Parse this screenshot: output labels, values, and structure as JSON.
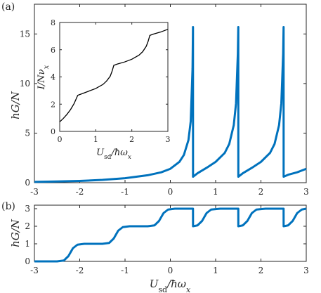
{
  "chart_data": [
    {
      "type": "line",
      "panel_label": "(a)",
      "ylabel": "hG/N",
      "xlim": [
        -3,
        3
      ],
      "ylim": [
        0,
        18
      ],
      "xticks": [
        "-3",
        "-2",
        "-1",
        "0",
        "1",
        "2",
        "3"
      ],
      "yticks": [
        "0",
        "5",
        "10",
        "15"
      ],
      "color": "#0072bd",
      "series": [
        {
          "x": [
            -3,
            -2.5,
            -2,
            -1.5,
            -1,
            -0.5,
            -0.2,
            0,
            0.2,
            0.3,
            0.4,
            0.45,
            0.49,
            0.5,
            0.501,
            0.6,
            0.8,
            1.0,
            1.2,
            1.3,
            1.4,
            1.45,
            1.49,
            1.5,
            1.501,
            1.6,
            1.8,
            2.0,
            2.2,
            2.3,
            2.4,
            2.45,
            2.49,
            2.5,
            2.501,
            2.6,
            2.8,
            3.0
          ],
          "y": [
            0.08,
            0.12,
            0.18,
            0.28,
            0.45,
            0.75,
            1.05,
            1.4,
            2.1,
            2.8,
            4.3,
            6.2,
            11.5,
            15.7,
            0.6,
            0.95,
            1.5,
            2.1,
            3.0,
            3.9,
            5.8,
            8.0,
            13.0,
            15.7,
            0.6,
            0.95,
            1.5,
            2.1,
            3.0,
            3.9,
            5.8,
            8.0,
            13.0,
            15.7,
            0.6,
            0.8,
            1.05,
            1.4
          ]
        }
      ],
      "inset": {
        "type": "line",
        "xlabel": "U_sd/ħω_x",
        "ylabel": "I/Nν_x",
        "xlim": [
          0,
          3
        ],
        "ylim": [
          0,
          8
        ],
        "xticks": [
          "0",
          "1",
          "2",
          "3"
        ],
        "yticks": [
          "0",
          "2",
          "4",
          "6",
          "8"
        ],
        "color": "#000000",
        "series": [
          {
            "x": [
              0,
              0.1,
              0.2,
              0.3,
              0.4,
              0.45,
              0.5,
              0.6,
              0.8,
              1.0,
              1.2,
              1.3,
              1.4,
              1.45,
              1.5,
              1.6,
              1.8,
              2.0,
              2.2,
              2.3,
              2.4,
              2.45,
              2.5,
              2.6,
              2.8,
              3.0
            ],
            "y": [
              0.7,
              0.95,
              1.25,
              1.6,
              2.05,
              2.35,
              2.65,
              2.75,
              2.95,
              3.15,
              3.45,
              3.7,
              4.05,
              4.4,
              4.85,
              4.95,
              5.1,
              5.3,
              5.6,
              5.85,
              6.25,
              6.6,
              7.05,
              7.15,
              7.3,
              7.5
            ]
          }
        ]
      }
    },
    {
      "type": "line",
      "panel_label": "(b)",
      "ylabel": "hG/N",
      "xlabel": "U_sd/ħω_x",
      "xlim": [
        -3,
        3
      ],
      "ylim": [
        0,
        3.2
      ],
      "xticks": [
        "-3",
        "-2",
        "-1",
        "0",
        "1",
        "2",
        "3"
      ],
      "yticks": [
        "0",
        "1",
        "2",
        "3"
      ],
      "color": "#0072bd",
      "series": [
        {
          "x": [
            -3,
            -2.5,
            -2.35,
            -2.25,
            -2.15,
            -2.05,
            -1.9,
            -1.5,
            -1.35,
            -1.25,
            -1.15,
            -1.05,
            -0.9,
            -0.5,
            -0.35,
            -0.25,
            -0.15,
            -0.05,
            0.1,
            0.5,
            0.501,
            0.6,
            0.7,
            0.8,
            0.9,
            1.1,
            1.5,
            1.501,
            1.6,
            1.7,
            1.8,
            1.9,
            2.1,
            2.5,
            2.501,
            2.6,
            2.7,
            2.8,
            2.9,
            3.0
          ],
          "y": [
            0.0,
            0.0,
            0.05,
            0.3,
            0.75,
            0.95,
            1.0,
            1.0,
            1.05,
            1.3,
            1.75,
            1.95,
            2.0,
            2.0,
            2.05,
            2.3,
            2.75,
            2.95,
            3.0,
            3.0,
            2.0,
            2.05,
            2.3,
            2.75,
            2.95,
            3.0,
            3.0,
            2.0,
            2.05,
            2.3,
            2.75,
            2.95,
            3.0,
            3.0,
            2.0,
            2.05,
            2.3,
            2.75,
            2.95,
            3.0
          ]
        }
      ]
    }
  ]
}
